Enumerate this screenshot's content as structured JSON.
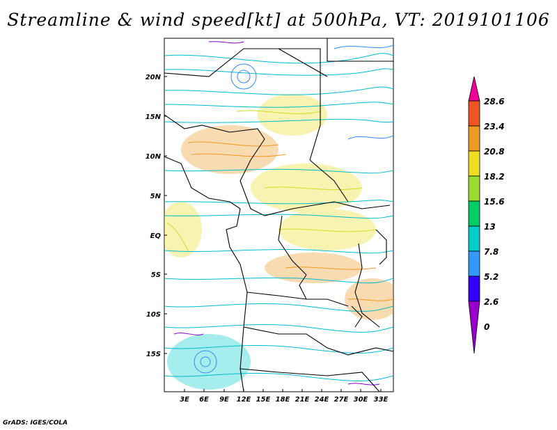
{
  "title": "Streamline & wind speed[kt] at 500hPa, VT: 2019101106",
  "footer": "GrADS: IGES/COLA",
  "map": {
    "lat_labels": [
      "20N",
      "15N",
      "10N",
      "5N",
      "EQ",
      "5S",
      "10S",
      "15S"
    ],
    "lon_labels": [
      "3E",
      "6E",
      "9E",
      "12E",
      "15E",
      "18E",
      "21E",
      "24E",
      "27E",
      "30E",
      "33E"
    ],
    "lat_range": [
      -20,
      24
    ],
    "lon_range": [
      0,
      34
    ]
  },
  "colorbar": {
    "labels": [
      "0",
      "2.6",
      "5.2",
      "7.8",
      "13",
      "15.6",
      "18.2",
      "20.8",
      "23.4",
      "28.6"
    ],
    "colors": [
      "#9900cc",
      "#3300ff",
      "#3399ff",
      "#00cccc",
      "#00cc66",
      "#99dd33",
      "#eedd22",
      "#ee9922",
      "#ee5522",
      "#ee0099"
    ]
  }
}
